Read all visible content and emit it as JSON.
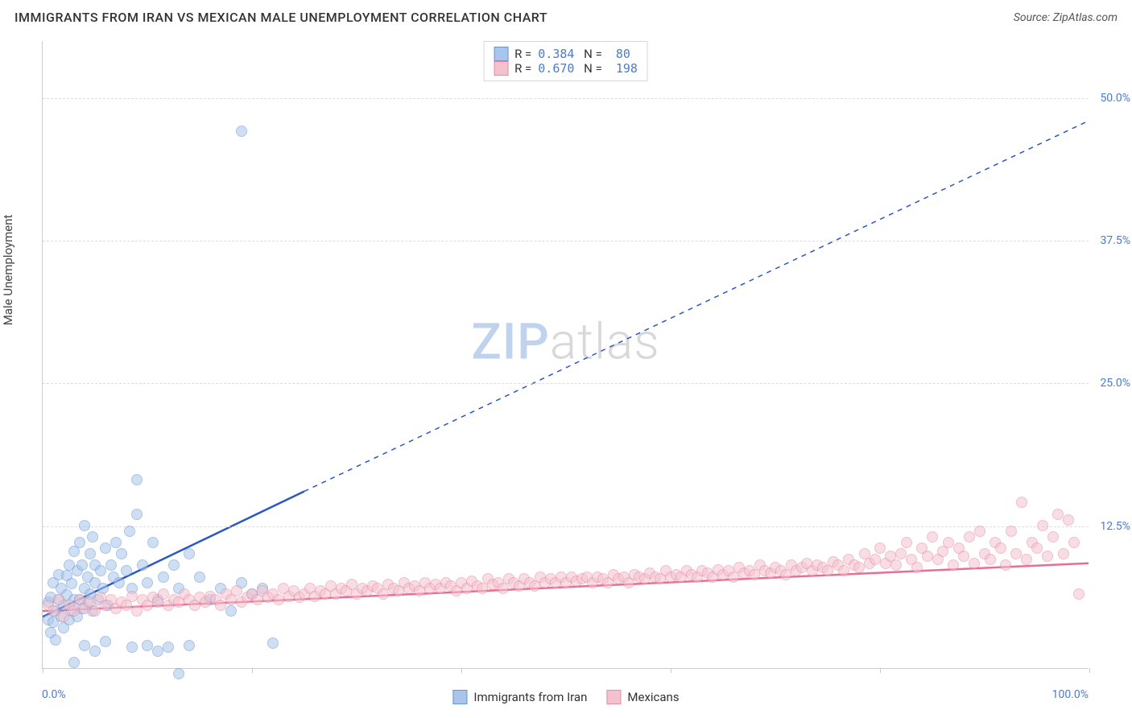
{
  "title": "IMMIGRANTS FROM IRAN VS MEXICAN MALE UNEMPLOYMENT CORRELATION CHART",
  "source_label": "Source: ZipAtlas.com",
  "ylabel": "Male Unemployment",
  "watermark": {
    "a": "ZIP",
    "b": "atlas"
  },
  "chart": {
    "type": "scatter",
    "xlim": [
      0,
      100
    ],
    "ylim": [
      0,
      55
    ],
    "y_gridlines": [
      12.5,
      25.0,
      37.5,
      50.0
    ],
    "y_tick_labels": [
      "12.5%",
      "25.0%",
      "37.5%",
      "50.0%"
    ],
    "x_ticks": [
      0,
      20,
      40,
      60,
      80,
      100
    ],
    "x_axis_labels": {
      "left": "0.0%",
      "right": "100.0%"
    },
    "background_color": "#ffffff",
    "grid_color": "#dddddd",
    "axis_color": "#cccccc",
    "title_fontsize": 16,
    "label_fontsize": 15,
    "tick_color": "#4a7bd0",
    "marker_radius": 7,
    "marker_opacity": 0.55,
    "series": [
      {
        "name": "Immigrants from Iran",
        "color_fill": "#a8c5eb",
        "color_stroke": "#6a94d4",
        "R": "0.384",
        "N": "80",
        "trend": {
          "x1": 0,
          "y1": 4.5,
          "x2": 25,
          "y2": 15.5,
          "color": "#2a56c6",
          "width": 2.5,
          "dash_extend_to_x": 100,
          "dash_extend_to_y": 48
        },
        "points": [
          [
            0.5,
            4.2
          ],
          [
            0.5,
            5.8
          ],
          [
            0.8,
            3.1
          ],
          [
            0.8,
            6.2
          ],
          [
            1.0,
            4.0
          ],
          [
            1.0,
            7.5
          ],
          [
            1.2,
            5.0
          ],
          [
            1.2,
            2.5
          ],
          [
            1.5,
            6.0
          ],
          [
            1.5,
            8.2
          ],
          [
            1.8,
            4.5
          ],
          [
            1.8,
            7.0
          ],
          [
            2.0,
            5.5
          ],
          [
            2.0,
            3.5
          ],
          [
            2.3,
            8.1
          ],
          [
            2.3,
            6.4
          ],
          [
            2.5,
            4.2
          ],
          [
            2.5,
            9.0
          ],
          [
            2.8,
            5.0
          ],
          [
            2.8,
            7.4
          ],
          [
            3.0,
            6.0
          ],
          [
            3.0,
            10.2
          ],
          [
            3.3,
            4.5
          ],
          [
            3.3,
            8.5
          ],
          [
            3.5,
            6.0
          ],
          [
            3.5,
            11.0
          ],
          [
            3.8,
            5.2
          ],
          [
            3.8,
            9.0
          ],
          [
            4.0,
            7.0
          ],
          [
            4.0,
            12.5
          ],
          [
            4.3,
            5.8
          ],
          [
            4.3,
            8.0
          ],
          [
            4.5,
            6.5
          ],
          [
            4.5,
            10.0
          ],
          [
            4.8,
            5.0
          ],
          [
            4.8,
            11.5
          ],
          [
            5.0,
            7.5
          ],
          [
            5.0,
            9.0
          ],
          [
            5.3,
            6.0
          ],
          [
            5.5,
            8.5
          ],
          [
            5.8,
            7.0
          ],
          [
            6.0,
            10.5
          ],
          [
            6.2,
            5.5
          ],
          [
            6.5,
            9.0
          ],
          [
            6.8,
            8.0
          ],
          [
            7.0,
            11.0
          ],
          [
            7.3,
            7.5
          ],
          [
            7.5,
            10.0
          ],
          [
            8.0,
            8.5
          ],
          [
            8.3,
            12.0
          ],
          [
            8.5,
            7.0
          ],
          [
            9.0,
            13.5
          ],
          [
            9.0,
            16.5
          ],
          [
            9.5,
            9.0
          ],
          [
            10.0,
            7.5
          ],
          [
            10.5,
            11.0
          ],
          [
            11.0,
            6.0
          ],
          [
            11.5,
            8.0
          ],
          [
            12.0,
            1.8
          ],
          [
            12.5,
            9.0
          ],
          [
            13.0,
            7.0
          ],
          [
            14.0,
            2.0
          ],
          [
            14.0,
            10.0
          ],
          [
            15.0,
            8.0
          ],
          [
            16.0,
            6.0
          ],
          [
            17.0,
            7.0
          ],
          [
            18.0,
            5.0
          ],
          [
            19.0,
            7.5
          ],
          [
            20.0,
            6.5
          ],
          [
            21.0,
            7.0
          ],
          [
            22.0,
            2.2
          ],
          [
            4.0,
            2.0
          ],
          [
            5.0,
            1.5
          ],
          [
            6.0,
            2.3
          ],
          [
            8.5,
            1.8
          ],
          [
            10.0,
            2.0
          ],
          [
            11.0,
            1.5
          ],
          [
            13.0,
            -0.5
          ],
          [
            3.0,
            0.5
          ],
          [
            19.0,
            47.0
          ]
        ]
      },
      {
        "name": "Mexicans",
        "color_fill": "#f4c2ce",
        "color_stroke": "#e88ba3",
        "R": "0.670",
        "N": "198",
        "trend": {
          "x1": 0,
          "y1": 5.0,
          "x2": 100,
          "y2": 9.2,
          "color": "#e76f93",
          "width": 2.5
        },
        "points": [
          [
            0.5,
            5.5
          ],
          [
            1.0,
            5.0
          ],
          [
            1.5,
            6.0
          ],
          [
            2.0,
            4.5
          ],
          [
            2.5,
            5.5
          ],
          [
            3.0,
            5.0
          ],
          [
            3.5,
            6.0
          ],
          [
            4.0,
            5.2
          ],
          [
            4.5,
            5.8
          ],
          [
            5.0,
            5.0
          ],
          [
            5.5,
            6.2
          ],
          [
            6.0,
            5.5
          ],
          [
            6.5,
            6.0
          ],
          [
            7.0,
            5.2
          ],
          [
            7.5,
            5.8
          ],
          [
            8.0,
            5.5
          ],
          [
            8.5,
            6.3
          ],
          [
            9.0,
            5.0
          ],
          [
            9.5,
            6.0
          ],
          [
            10.0,
            5.5
          ],
          [
            10.5,
            6.2
          ],
          [
            11.0,
            5.8
          ],
          [
            11.5,
            6.5
          ],
          [
            12.0,
            5.5
          ],
          [
            12.5,
            6.0
          ],
          [
            13.0,
            5.8
          ],
          [
            13.5,
            6.5
          ],
          [
            14.0,
            6.0
          ],
          [
            14.5,
            5.5
          ],
          [
            15.0,
            6.2
          ],
          [
            15.5,
            5.8
          ],
          [
            16.0,
            6.3
          ],
          [
            16.5,
            6.0
          ],
          [
            17.0,
            5.5
          ],
          [
            17.5,
            6.5
          ],
          [
            18.0,
            6.0
          ],
          [
            18.5,
            6.8
          ],
          [
            19.0,
            5.8
          ],
          [
            19.5,
            6.2
          ],
          [
            20.0,
            6.5
          ],
          [
            20.5,
            6.0
          ],
          [
            21.0,
            6.8
          ],
          [
            21.5,
            6.2
          ],
          [
            22.0,
            6.5
          ],
          [
            22.5,
            6.0
          ],
          [
            23.0,
            7.0
          ],
          [
            23.5,
            6.3
          ],
          [
            24.0,
            6.8
          ],
          [
            24.5,
            6.2
          ],
          [
            25.0,
            6.5
          ],
          [
            25.5,
            7.0
          ],
          [
            26.0,
            6.3
          ],
          [
            26.5,
            6.8
          ],
          [
            27.0,
            6.5
          ],
          [
            27.5,
            7.2
          ],
          [
            28.0,
            6.5
          ],
          [
            28.5,
            7.0
          ],
          [
            29.0,
            6.8
          ],
          [
            29.5,
            7.3
          ],
          [
            30.0,
            6.5
          ],
          [
            30.5,
            7.0
          ],
          [
            31.0,
            6.8
          ],
          [
            31.5,
            7.2
          ],
          [
            32.0,
            7.0
          ],
          [
            32.5,
            6.5
          ],
          [
            33.0,
            7.3
          ],
          [
            33.5,
            7.0
          ],
          [
            34.0,
            6.8
          ],
          [
            34.5,
            7.5
          ],
          [
            35.0,
            7.0
          ],
          [
            35.5,
            7.2
          ],
          [
            36.0,
            6.8
          ],
          [
            36.5,
            7.5
          ],
          [
            37.0,
            7.0
          ],
          [
            37.5,
            7.3
          ],
          [
            38.0,
            7.0
          ],
          [
            38.5,
            7.5
          ],
          [
            39.0,
            7.2
          ],
          [
            39.5,
            6.8
          ],
          [
            40.0,
            7.5
          ],
          [
            40.5,
            7.0
          ],
          [
            41.0,
            7.6
          ],
          [
            41.5,
            7.2
          ],
          [
            42.0,
            7.0
          ],
          [
            42.5,
            7.8
          ],
          [
            43.0,
            7.3
          ],
          [
            43.5,
            7.5
          ],
          [
            44.0,
            7.0
          ],
          [
            44.5,
            7.8
          ],
          [
            45.0,
            7.5
          ],
          [
            45.5,
            7.2
          ],
          [
            46.0,
            7.8
          ],
          [
            46.5,
            7.5
          ],
          [
            47.0,
            7.2
          ],
          [
            47.5,
            8.0
          ],
          [
            48.0,
            7.5
          ],
          [
            48.5,
            7.8
          ],
          [
            49.0,
            7.5
          ],
          [
            49.5,
            8.0
          ],
          [
            50.0,
            7.5
          ],
          [
            50.5,
            8.0
          ],
          [
            51.0,
            7.6
          ],
          [
            51.5,
            7.8
          ],
          [
            52.0,
            8.0
          ],
          [
            52.5,
            7.5
          ],
          [
            53.0,
            8.0
          ],
          [
            53.5,
            7.8
          ],
          [
            54.0,
            7.5
          ],
          [
            54.5,
            8.2
          ],
          [
            55.0,
            7.8
          ],
          [
            55.5,
            8.0
          ],
          [
            56.0,
            7.5
          ],
          [
            56.5,
            8.2
          ],
          [
            57.0,
            8.0
          ],
          [
            57.5,
            7.8
          ],
          [
            58.0,
            8.3
          ],
          [
            58.5,
            8.0
          ],
          [
            59.0,
            7.8
          ],
          [
            59.5,
            8.5
          ],
          [
            60.0,
            8.0
          ],
          [
            60.5,
            8.2
          ],
          [
            61.0,
            8.0
          ],
          [
            61.5,
            8.5
          ],
          [
            62.0,
            8.2
          ],
          [
            62.5,
            8.0
          ],
          [
            63.0,
            8.5
          ],
          [
            63.5,
            8.3
          ],
          [
            64.0,
            8.0
          ],
          [
            64.5,
            8.6
          ],
          [
            65.0,
            8.2
          ],
          [
            65.5,
            8.5
          ],
          [
            66.0,
            8.0
          ],
          [
            66.5,
            8.8
          ],
          [
            67.0,
            8.3
          ],
          [
            67.5,
            8.5
          ],
          [
            68.0,
            8.2
          ],
          [
            68.5,
            9.0
          ],
          [
            69.0,
            8.5
          ],
          [
            69.5,
            8.3
          ],
          [
            70.0,
            8.8
          ],
          [
            70.5,
            8.5
          ],
          [
            71.0,
            8.2
          ],
          [
            71.5,
            9.0
          ],
          [
            72.0,
            8.5
          ],
          [
            72.5,
            8.8
          ],
          [
            73.0,
            9.2
          ],
          [
            73.5,
            8.5
          ],
          [
            74.0,
            9.0
          ],
          [
            74.5,
            8.8
          ],
          [
            75.0,
            8.5
          ],
          [
            75.5,
            9.3
          ],
          [
            76.0,
            9.0
          ],
          [
            76.5,
            8.5
          ],
          [
            77.0,
            9.5
          ],
          [
            77.5,
            9.0
          ],
          [
            78.0,
            8.8
          ],
          [
            78.5,
            10.0
          ],
          [
            79.0,
            9.2
          ],
          [
            79.5,
            9.5
          ],
          [
            80.0,
            10.5
          ],
          [
            80.5,
            9.2
          ],
          [
            81.0,
            9.8
          ],
          [
            81.5,
            9.0
          ],
          [
            82.0,
            10.0
          ],
          [
            82.5,
            11.0
          ],
          [
            83.0,
            9.5
          ],
          [
            83.5,
            8.8
          ],
          [
            84.0,
            10.5
          ],
          [
            84.5,
            9.8
          ],
          [
            85.0,
            11.5
          ],
          [
            85.5,
            9.5
          ],
          [
            86.0,
            10.2
          ],
          [
            86.5,
            11.0
          ],
          [
            87.0,
            9.0
          ],
          [
            87.5,
            10.5
          ],
          [
            88.0,
            9.8
          ],
          [
            88.5,
            11.5
          ],
          [
            89.0,
            9.2
          ],
          [
            89.5,
            12.0
          ],
          [
            90.0,
            10.0
          ],
          [
            90.5,
            9.5
          ],
          [
            91.0,
            11.0
          ],
          [
            91.5,
            10.5
          ],
          [
            92.0,
            9.0
          ],
          [
            92.5,
            12.0
          ],
          [
            93.0,
            10.0
          ],
          [
            93.5,
            14.5
          ],
          [
            94.0,
            9.5
          ],
          [
            94.5,
            11.0
          ],
          [
            95.0,
            10.5
          ],
          [
            95.5,
            12.5
          ],
          [
            96.0,
            9.8
          ],
          [
            96.5,
            11.5
          ],
          [
            97.0,
            13.5
          ],
          [
            97.5,
            10.0
          ],
          [
            98.0,
            13.0
          ],
          [
            98.5,
            11.0
          ],
          [
            99.0,
            6.5
          ]
        ]
      }
    ],
    "bottom_legend": [
      {
        "label": "Immigrants from Iran",
        "fill": "#a8c5eb",
        "stroke": "#6a94d4"
      },
      {
        "label": "Mexicans",
        "fill": "#f4c2ce",
        "stroke": "#e88ba3"
      }
    ]
  }
}
